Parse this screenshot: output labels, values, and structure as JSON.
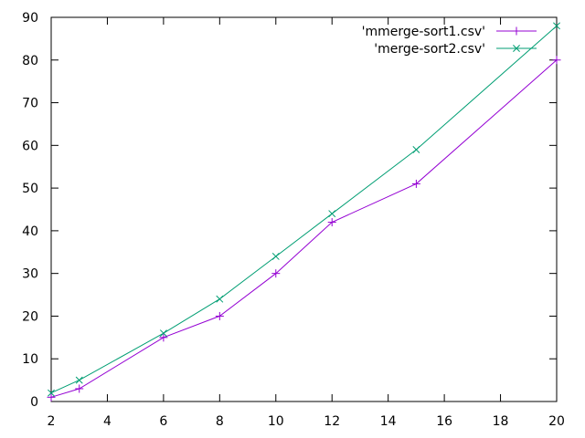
{
  "chart_data": {
    "type": "line",
    "title": "",
    "xlabel": "",
    "ylabel": "",
    "xlim": [
      2,
      20
    ],
    "ylim": [
      0,
      90
    ],
    "xticks": [
      2,
      4,
      6,
      8,
      10,
      12,
      14,
      16,
      18,
      20
    ],
    "yticks": [
      0,
      10,
      20,
      30,
      40,
      50,
      60,
      70,
      80,
      90
    ],
    "grid": false,
    "legend_position": "top-right",
    "series": [
      {
        "name": "'mmerge-sort1.csv'",
        "color": "#9400d3",
        "marker": "plus",
        "x": [
          2,
          3,
          6,
          8,
          10,
          12,
          15,
          20
        ],
        "y": [
          1,
          3,
          15,
          20,
          30,
          42,
          51,
          80
        ]
      },
      {
        "name": "'merge-sort2.csv'",
        "color": "#009e73",
        "marker": "cross",
        "x": [
          2,
          3,
          6,
          8,
          10,
          12,
          15,
          20
        ],
        "y": [
          2,
          5,
          16,
          24,
          34,
          44,
          59,
          88
        ]
      }
    ]
  }
}
